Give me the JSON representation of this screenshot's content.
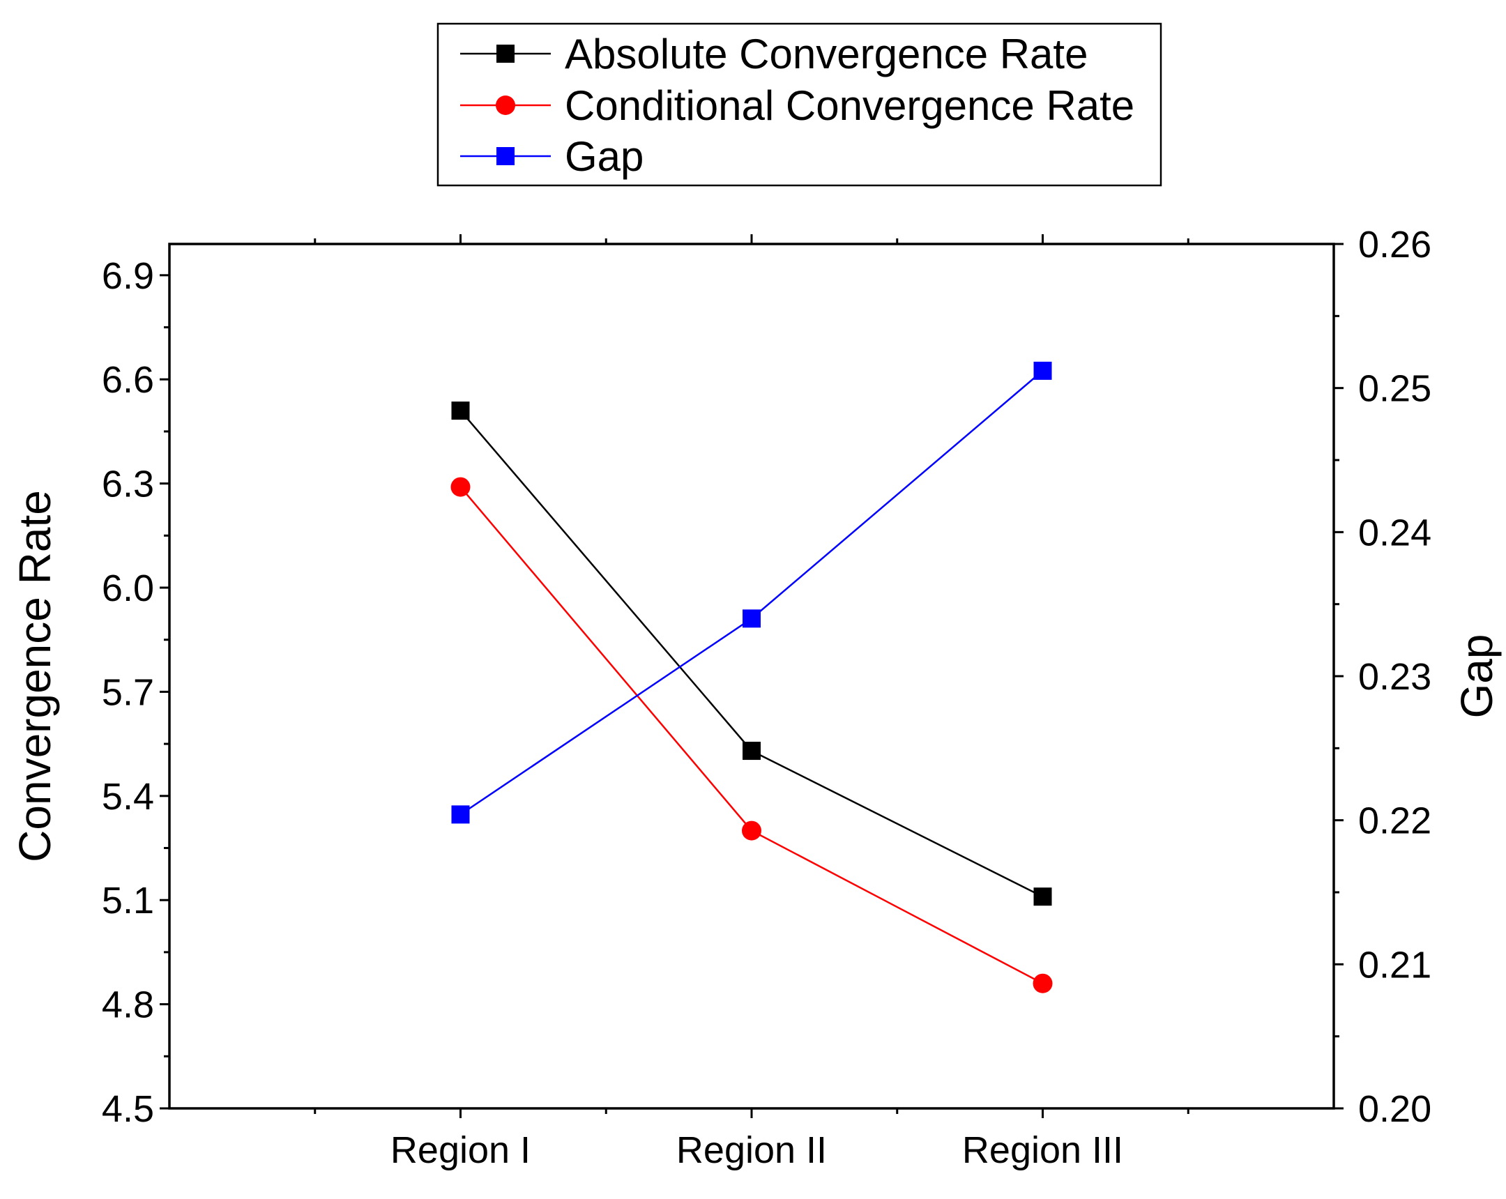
{
  "chart_data": {
    "type": "line",
    "title": "",
    "categories": [
      "Region I",
      "Region II",
      "Region III"
    ],
    "xlabel": "",
    "ylabel": "Convergence Rate",
    "y2label": "Gap",
    "ylim": [
      4.5,
      6.99
    ],
    "y2lim": [
      0.2,
      0.26
    ],
    "yticks": [
      "4.5",
      "4.8",
      "5.1",
      "5.4",
      "5.7",
      "6.0",
      "6.3",
      "6.6",
      "6.9"
    ],
    "y2ticks": [
      "0.20",
      "0.21",
      "0.22",
      "0.23",
      "0.24",
      "0.25",
      "0.26"
    ],
    "legend_position": "top-center, above plot",
    "series": [
      {
        "name": "Absolute Convergence Rate",
        "axis": "left",
        "color": "#000000",
        "marker": "square",
        "values": [
          6.51,
          5.53,
          5.11
        ]
      },
      {
        "name": "Conditional Convergence Rate",
        "axis": "left",
        "color": "#ff0000",
        "marker": "circle",
        "values": [
          6.29,
          5.3,
          4.86
        ]
      },
      {
        "name": "Gap",
        "axis": "right",
        "color": "#0000ff",
        "marker": "square",
        "values": [
          0.2204,
          0.234,
          0.2512
        ]
      }
    ]
  }
}
